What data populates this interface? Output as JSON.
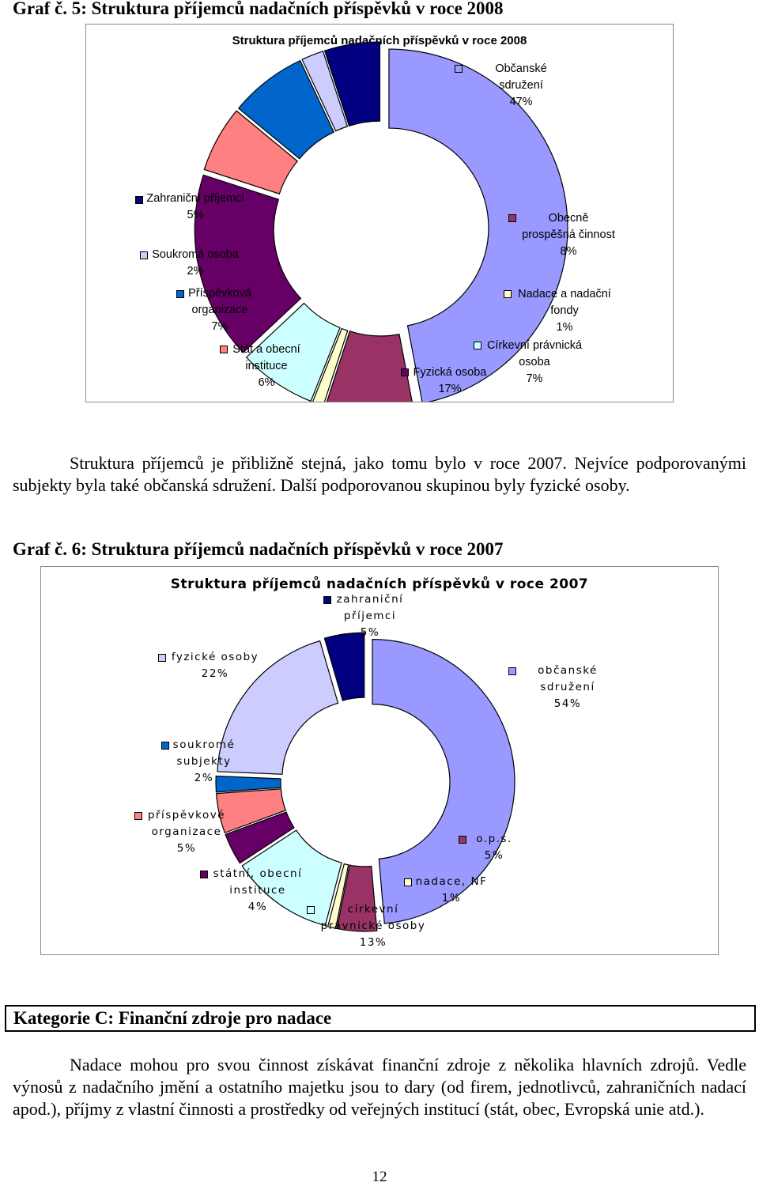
{
  "graph5": {
    "heading": "Graf č. 5: Struktura příjemců nadačních příspěvků v roce 2008",
    "chart_data": {
      "type": "pie",
      "title": "Struktura příjemců nadačních příspěvků v roce 2008",
      "slices": [
        {
          "label_lines": [
            "Občanské",
            "sdružení"
          ],
          "pct_label": "47%",
          "value": 47,
          "color": "#9999ff"
        },
        {
          "label_lines": [
            "Obecně",
            "prospěšná činnost"
          ],
          "pct_label": "8%",
          "value": 8,
          "color": "#993366"
        },
        {
          "label_lines": [
            "Nadace a nadační",
            "fondy"
          ],
          "pct_label": "1%",
          "value": 1,
          "color": "#ffffcc"
        },
        {
          "label_lines": [
            "Církevní právnická",
            "osoba"
          ],
          "pct_label": "7%",
          "value": 7,
          "color": "#ccffff"
        },
        {
          "label_lines": [
            "Fyzická osoba"
          ],
          "pct_label": "17%",
          "value": 17,
          "color": "#660066"
        },
        {
          "label_lines": [
            "Stát a obecní",
            "instituce"
          ],
          "pct_label": "6%",
          "value": 6,
          "color": "#ff8080"
        },
        {
          "label_lines": [
            "Příspěvková",
            "organizace"
          ],
          "pct_label": "7%",
          "value": 7,
          "color": "#0066cc"
        },
        {
          "label_lines": [
            "Soukromá osoba"
          ],
          "pct_label": "2%",
          "value": 2,
          "color": "#ccccff"
        },
        {
          "label_lines": [
            "Zahraniční příjemci"
          ],
          "pct_label": "5%",
          "value": 5,
          "color": "#000080"
        }
      ]
    }
  },
  "para1": "Struktura příjemců je přibližně stejná, jako tomu bylo v roce 2007. Nejvíce podporovanými subjekty byla také občanská sdružení. Další podporovanou skupinou byly fyzické osoby.",
  "graph6": {
    "heading": "Graf č. 6: Struktura příjemců nadačních příspěvků v roce 2007",
    "chart_data": {
      "type": "pie",
      "title": "Struktura příjemců nadačních příspěvků v roce 2007",
      "slices": [
        {
          "label_lines": [
            "občanské",
            "sdružení"
          ],
          "pct_label": "54%",
          "value": 54,
          "color": "#9999ff"
        },
        {
          "label_lines": [
            "o.p.s."
          ],
          "pct_label": "5%",
          "value": 5,
          "color": "#993366"
        },
        {
          "label_lines": [
            "nadace, NF"
          ],
          "pct_label": "1%",
          "value": 1,
          "color": "#ffffcc"
        },
        {
          "label_lines": [
            "církevní",
            "právnické osoby"
          ],
          "pct_label": "13%",
          "value": 13,
          "color": "#ccffff"
        },
        {
          "label_lines": [
            "státní, obecní",
            "instituce"
          ],
          "pct_label": "4%",
          "value": 4,
          "color": "#660066"
        },
        {
          "label_lines": [
            "příspěvkové",
            "organizace"
          ],
          "pct_label": "5%",
          "value": 5,
          "color": "#ff8080"
        },
        {
          "label_lines": [
            "soukromé",
            "subjekty"
          ],
          "pct_label": "2%",
          "value": 2,
          "color": "#0066cc"
        },
        {
          "label_lines": [
            "fyzické osoby"
          ],
          "pct_label": "22%",
          "value": 22,
          "color": "#ccccff"
        },
        {
          "label_lines": [
            "zahraniční",
            "příjemci"
          ],
          "pct_label": "5%",
          "value": 5,
          "color": "#000080"
        }
      ]
    }
  },
  "section_title": "Kategorie C: Finanční zdroje pro nadace",
  "para2": "Nadace mohou pro svou činnost získávat finanční zdroje z několika hlavních zdrojů. Vedle výnosů z nadačního jmění a ostatního majetku jsou to dary (od firem, jednotlivců, zahraničních nadací apod.), příjmy z vlastní činnosti a prostředky od veřejných institucí (stát, obec, Evropská unie atd.).",
  "page_number": "12"
}
